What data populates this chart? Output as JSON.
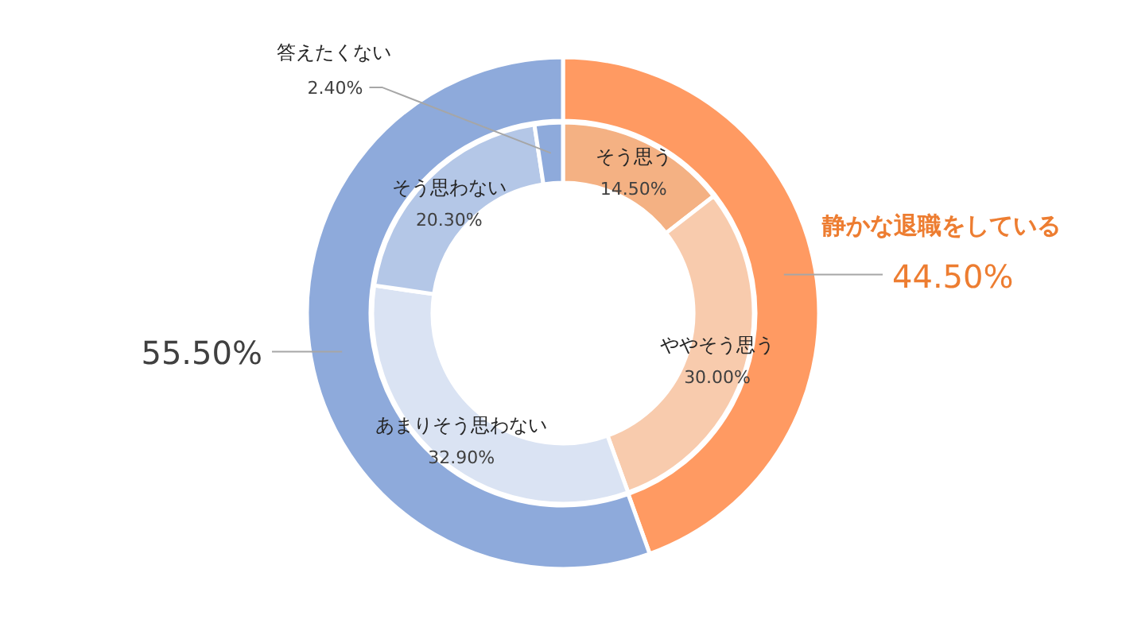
{
  "chart_data": [
    {
      "type": "donut",
      "categories": [
        "静かな退職をしている",
        null
      ],
      "values": [
        44.5,
        55.5
      ],
      "colors": [
        "#ff9a62",
        "#8eaadb"
      ],
      "value_labels": [
        "44.50%",
        "55.50%"
      ]
    },
    {
      "type": "donut",
      "categories": [
        "そう思う",
        "ややそう思う",
        "あまりそう思わない",
        "そう思わない",
        "答えたくない"
      ],
      "values": [
        14.5,
        30.0,
        32.9,
        20.3,
        2.4
      ],
      "colors": [
        "#f4b183",
        "#f8cbad",
        "#dae3f3",
        "#b4c7e7",
        "#8eaadb"
      ],
      "value_labels": [
        "14.50%",
        "30.00%",
        "32.90%",
        "20.30%",
        "2.40%"
      ]
    }
  ]
}
